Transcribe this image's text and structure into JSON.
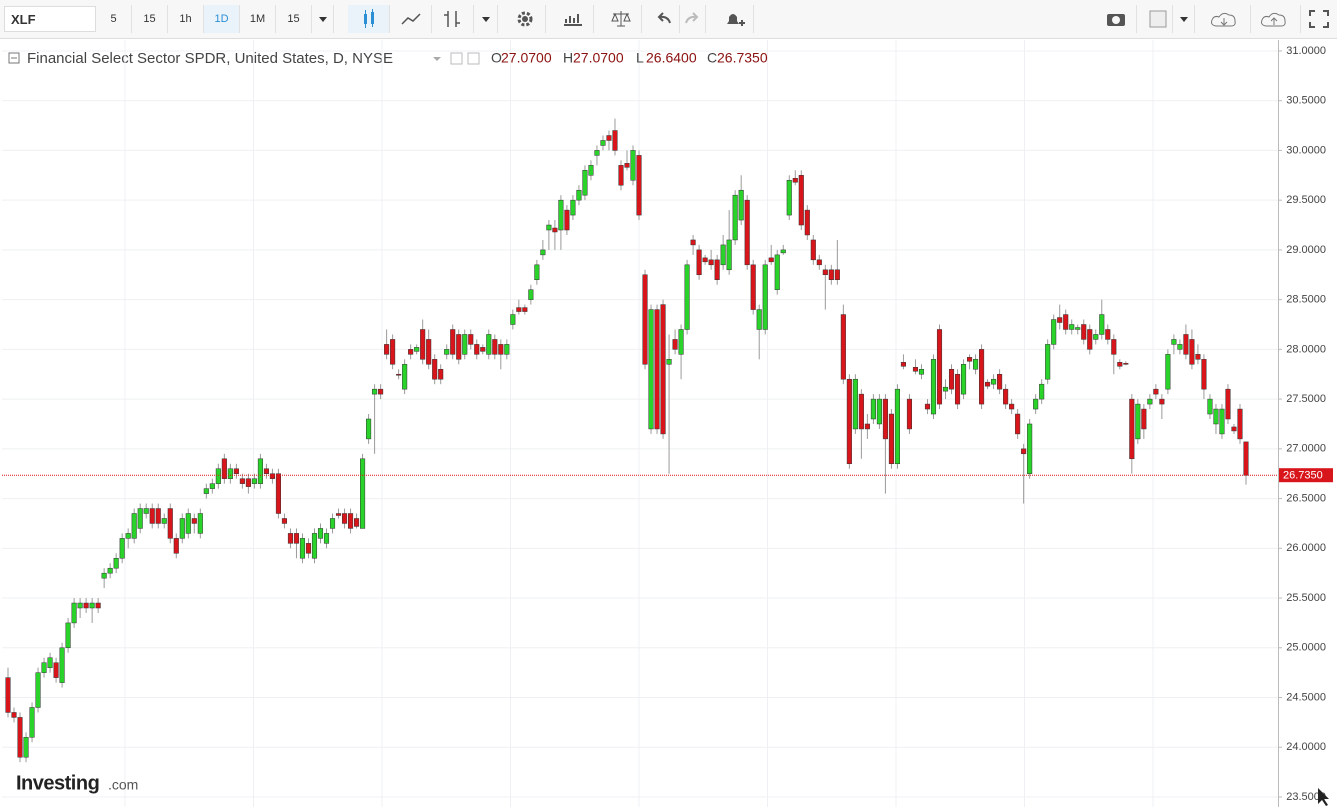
{
  "toolbar": {
    "symbol": "XLF",
    "intervals": [
      "5",
      "15",
      "1h",
      "1D",
      "1M",
      "15"
    ],
    "active": 3
  },
  "watermark": [
    "Investing",
    ".com"
  ],
  "chart_data": {
    "type": "candlestick",
    "title": "Financial Select Sector SPDR, United States, D, NYSE",
    "ohlc_keys": [
      "O",
      "H",
      "L",
      "C"
    ],
    "ohlc_labels": [
      "27.0700",
      "27.0700",
      "26.6400",
      "26.7350"
    ],
    "up_color": "#29d329",
    "down_color": "#d8151b",
    "price_line_color": "#d8151b",
    "grid": true,
    "ylim": [
      23.5,
      31.1
    ],
    "yticks": [
      {
        "value": 31.0,
        "label": "31.0000"
      },
      {
        "value": 30.5,
        "label": "30.5000"
      },
      {
        "value": 30.0,
        "label": "30.0000"
      },
      {
        "value": 29.5,
        "label": "29.5000"
      },
      {
        "value": 29.0,
        "label": "29.0000"
      },
      {
        "value": 28.5,
        "label": "28.5000"
      },
      {
        "value": 28.0,
        "label": "28.0000"
      },
      {
        "value": 27.5,
        "label": "27.5000"
      },
      {
        "value": 27.0,
        "label": "27.0000"
      },
      {
        "value": 26.5,
        "label": "26.5000"
      },
      {
        "value": 26.0,
        "label": "26.0000"
      },
      {
        "value": 25.5,
        "label": "25.5000"
      },
      {
        "value": 25.0,
        "label": "25.0000"
      },
      {
        "value": 24.5,
        "label": "24.5000"
      },
      {
        "value": 24.0,
        "label": "24.0000"
      },
      {
        "value": 23.5,
        "label": "23.5000"
      }
    ],
    "candles": [
      [
        24.7,
        24.8,
        24.3,
        24.35
      ],
      [
        24.35,
        24.4,
        24.25,
        24.3
      ],
      [
        24.3,
        24.35,
        23.85,
        23.9
      ],
      [
        23.9,
        24.15,
        23.85,
        24.1
      ],
      [
        24.1,
        24.45,
        24.05,
        24.4
      ],
      [
        24.4,
        24.8,
        24.35,
        24.75
      ],
      [
        24.75,
        24.9,
        24.7,
        24.85
      ],
      [
        24.8,
        24.95,
        24.75,
        24.9
      ],
      [
        24.85,
        24.9,
        24.65,
        24.7
      ],
      [
        24.65,
        25.05,
        24.6,
        25.0
      ],
      [
        25.0,
        25.3,
        24.95,
        25.25
      ],
      [
        25.25,
        25.5,
        25.2,
        25.45
      ],
      [
        25.4,
        25.5,
        25.3,
        25.45
      ],
      [
        25.45,
        25.5,
        25.35,
        25.4
      ],
      [
        25.4,
        25.5,
        25.25,
        25.45
      ],
      [
        25.45,
        25.5,
        25.35,
        25.4
      ],
      [
        25.7,
        25.8,
        25.6,
        25.75
      ],
      [
        25.75,
        25.85,
        25.7,
        25.8
      ],
      [
        25.8,
        25.95,
        25.75,
        25.9
      ],
      [
        25.9,
        26.15,
        25.85,
        26.1
      ],
      [
        26.1,
        26.2,
        26.0,
        26.15
      ],
      [
        26.1,
        26.4,
        26.05,
        26.35
      ],
      [
        26.2,
        26.45,
        26.15,
        26.4
      ],
      [
        26.35,
        26.45,
        26.3,
        26.4
      ],
      [
        26.4,
        26.45,
        26.2,
        26.25
      ],
      [
        26.4,
        26.45,
        26.2,
        26.25
      ],
      [
        26.25,
        26.35,
        26.2,
        26.3
      ],
      [
        26.4,
        26.45,
        26.05,
        26.1
      ],
      [
        26.1,
        26.15,
        25.9,
        25.95
      ],
      [
        26.1,
        26.35,
        26.05,
        26.3
      ],
      [
        26.15,
        26.4,
        26.1,
        26.35
      ],
      [
        26.3,
        26.35,
        26.15,
        26.25
      ],
      [
        26.15,
        26.4,
        26.1,
        26.35
      ],
      [
        26.55,
        26.65,
        26.5,
        26.6
      ],
      [
        26.6,
        26.7,
        26.55,
        26.65
      ],
      [
        26.65,
        26.85,
        26.6,
        26.8
      ],
      [
        26.9,
        26.95,
        26.65,
        26.7
      ],
      [
        26.7,
        26.85,
        26.65,
        26.8
      ],
      [
        26.8,
        26.85,
        26.7,
        26.75
      ],
      [
        26.7,
        26.75,
        26.6,
        26.65
      ],
      [
        26.7,
        26.75,
        26.55,
        26.62
      ],
      [
        26.65,
        26.75,
        26.6,
        26.7
      ],
      [
        26.65,
        26.95,
        26.6,
        26.9
      ],
      [
        26.8,
        26.85,
        26.7,
        26.75
      ],
      [
        26.75,
        26.8,
        26.65,
        26.7
      ],
      [
        26.75,
        26.8,
        26.3,
        26.35
      ],
      [
        26.3,
        26.35,
        26.2,
        26.25
      ],
      [
        26.15,
        26.2,
        26.0,
        26.05
      ],
      [
        26.15,
        26.2,
        25.9,
        26.05
      ],
      [
        25.9,
        26.15,
        25.85,
        26.1
      ],
      [
        26.05,
        26.1,
        25.9,
        25.95
      ],
      [
        25.9,
        26.2,
        25.85,
        26.15
      ],
      [
        26.1,
        26.25,
        26.05,
        26.2
      ],
      [
        26.05,
        26.2,
        26.0,
        26.15
      ],
      [
        26.2,
        26.35,
        26.15,
        26.3
      ],
      [
        26.35,
        26.4,
        26.3,
        26.33
      ],
      [
        26.35,
        26.4,
        26.2,
        26.25
      ],
      [
        26.35,
        26.4,
        26.15,
        26.2
      ],
      [
        26.3,
        26.35,
        26.2,
        26.22
      ],
      [
        26.2,
        26.95,
        26.2,
        26.9
      ],
      [
        27.1,
        27.35,
        27.05,
        27.3
      ],
      [
        27.55,
        27.65,
        26.95,
        27.6
      ],
      [
        27.6,
        27.65,
        27.5,
        27.55
      ],
      [
        28.05,
        28.2,
        27.9,
        27.95
      ],
      [
        28.1,
        28.15,
        27.8,
        27.85
      ],
      [
        27.75,
        27.8,
        27.7,
        27.74
      ],
      [
        27.6,
        27.9,
        27.55,
        27.85
      ],
      [
        28.0,
        28.05,
        27.9,
        27.95
      ],
      [
        27.98,
        28.05,
        27.95,
        28.02
      ],
      [
        28.2,
        28.3,
        27.85,
        27.9
      ],
      [
        28.1,
        28.2,
        27.8,
        27.85
      ],
      [
        27.9,
        27.95,
        27.65,
        27.7
      ],
      [
        27.8,
        27.85,
        27.65,
        27.7
      ],
      [
        27.95,
        28.05,
        27.9,
        28.0
      ],
      [
        28.2,
        28.25,
        27.9,
        27.95
      ],
      [
        28.15,
        28.2,
        27.85,
        27.9
      ],
      [
        27.95,
        28.2,
        27.9,
        28.15
      ],
      [
        28.15,
        28.2,
        28.0,
        28.05
      ],
      [
        28.05,
        28.1,
        27.9,
        27.95
      ],
      [
        28.02,
        28.05,
        27.95,
        27.98
      ],
      [
        27.95,
        28.2,
        27.9,
        28.15
      ],
      [
        28.1,
        28.15,
        27.9,
        27.95
      ],
      [
        28.05,
        28.1,
        27.8,
        27.95
      ],
      [
        27.95,
        28.1,
        27.9,
        28.05
      ],
      [
        28.25,
        28.4,
        28.2,
        28.35
      ],
      [
        28.42,
        28.5,
        28.35,
        28.38
      ],
      [
        28.42,
        28.45,
        28.35,
        28.38
      ],
      [
        28.5,
        28.65,
        28.45,
        28.6
      ],
      [
        28.7,
        28.9,
        28.65,
        28.85
      ],
      [
        28.95,
        29.1,
        28.9,
        29.0
      ],
      [
        29.2,
        29.3,
        29.0,
        29.25
      ],
      [
        29.22,
        29.3,
        29.0,
        29.18
      ],
      [
        29.2,
        29.55,
        29.0,
        29.5
      ],
      [
        29.4,
        29.45,
        29.15,
        29.2
      ],
      [
        29.35,
        29.55,
        29.3,
        29.5
      ],
      [
        29.5,
        29.65,
        29.45,
        29.6
      ],
      [
        29.55,
        29.85,
        29.5,
        29.8
      ],
      [
        29.75,
        29.9,
        29.7,
        29.85
      ],
      [
        29.95,
        30.05,
        29.85,
        30.0
      ],
      [
        30.05,
        30.15,
        30.0,
        30.1
      ],
      [
        30.15,
        30.2,
        30.0,
        30.1
      ],
      [
        30.2,
        30.32,
        29.95,
        30.0
      ],
      [
        29.85,
        29.9,
        29.6,
        29.65
      ],
      [
        29.87,
        30.0,
        29.8,
        29.83
      ],
      [
        29.7,
        30.05,
        29.65,
        30.0
      ],
      [
        29.95,
        30.0,
        29.3,
        29.35
      ],
      [
        28.75,
        28.8,
        27.8,
        27.85
      ],
      [
        27.2,
        28.45,
        27.15,
        28.4
      ],
      [
        28.4,
        28.45,
        27.15,
        27.2
      ],
      [
        28.45,
        28.5,
        27.1,
        27.15
      ],
      [
        27.85,
        28.15,
        26.75,
        27.9
      ],
      [
        28.1,
        28.2,
        27.95,
        28.0
      ],
      [
        27.95,
        28.25,
        27.7,
        28.2
      ],
      [
        28.2,
        28.9,
        28.15,
        28.85
      ],
      [
        29.1,
        29.15,
        28.95,
        29.05
      ],
      [
        29.0,
        29.05,
        28.7,
        28.75
      ],
      [
        28.92,
        28.95,
        28.85,
        28.88
      ],
      [
        28.9,
        29.0,
        28.8,
        28.85
      ],
      [
        28.9,
        28.95,
        28.65,
        28.7
      ],
      [
        28.85,
        29.15,
        28.8,
        29.05
      ],
      [
        28.8,
        29.4,
        28.75,
        29.1
      ],
      [
        29.1,
        29.6,
        29.05,
        29.55
      ],
      [
        29.3,
        29.75,
        29.25,
        29.6
      ],
      [
        29.5,
        29.55,
        28.8,
        28.85
      ],
      [
        28.85,
        28.9,
        28.35,
        28.4
      ],
      [
        28.2,
        28.45,
        27.9,
        28.4
      ],
      [
        28.2,
        28.9,
        28.15,
        28.85
      ],
      [
        28.92,
        29.05,
        28.85,
        28.88
      ],
      [
        28.6,
        29.0,
        28.55,
        28.95
      ],
      [
        28.97,
        29.05,
        28.95,
        29.0
      ],
      [
        29.35,
        29.75,
        29.3,
        29.7
      ],
      [
        29.72,
        29.8,
        29.65,
        29.68
      ],
      [
        29.75,
        29.8,
        29.2,
        29.25
      ],
      [
        29.4,
        29.45,
        29.1,
        29.15
      ],
      [
        29.1,
        29.15,
        28.85,
        28.9
      ],
      [
        28.9,
        28.95,
        28.8,
        28.85
      ],
      [
        28.8,
        28.85,
        28.4,
        28.75
      ],
      [
        28.8,
        28.85,
        28.65,
        28.7
      ],
      [
        28.8,
        29.1,
        28.65,
        28.7
      ],
      [
        28.35,
        28.45,
        27.65,
        27.7
      ],
      [
        27.7,
        27.75,
        26.8,
        26.85
      ],
      [
        27.2,
        27.75,
        27.15,
        27.7
      ],
      [
        27.55,
        27.6,
        26.9,
        27.2
      ],
      [
        27.25,
        27.35,
        27.1,
        27.2
      ],
      [
        27.3,
        27.55,
        27.25,
        27.5
      ],
      [
        27.25,
        27.55,
        27.2,
        27.5
      ],
      [
        27.5,
        27.55,
        26.55,
        27.1
      ],
      [
        27.35,
        27.4,
        26.8,
        26.85
      ],
      [
        26.85,
        27.65,
        26.8,
        27.6
      ],
      [
        27.87,
        27.95,
        27.8,
        27.83
      ],
      [
        27.5,
        27.55,
        27.15,
        27.2
      ],
      [
        27.82,
        27.9,
        27.75,
        27.78
      ],
      [
        27.75,
        27.85,
        27.7,
        27.8
      ],
      [
        27.45,
        27.5,
        27.35,
        27.4
      ],
      [
        27.35,
        27.95,
        27.3,
        27.9
      ],
      [
        28.2,
        28.25,
        27.4,
        27.45
      ],
      [
        27.58,
        27.7,
        27.5,
        27.62
      ],
      [
        27.8,
        27.85,
        27.55,
        27.6
      ],
      [
        27.75,
        27.8,
        27.4,
        27.45
      ],
      [
        27.55,
        27.9,
        27.5,
        27.85
      ],
      [
        27.92,
        27.95,
        27.8,
        27.88
      ],
      [
        27.8,
        27.95,
        27.75,
        27.9
      ],
      [
        28.0,
        28.05,
        27.4,
        27.45
      ],
      [
        27.67,
        27.7,
        27.6,
        27.63
      ],
      [
        27.65,
        27.75,
        27.6,
        27.7
      ],
      [
        27.75,
        27.8,
        27.55,
        27.6
      ],
      [
        27.6,
        27.65,
        27.4,
        27.45
      ],
      [
        27.45,
        27.5,
        27.35,
        27.4
      ],
      [
        27.35,
        27.4,
        27.1,
        27.15
      ],
      [
        27.0,
        27.05,
        26.45,
        26.95
      ],
      [
        26.75,
        27.3,
        26.7,
        27.25
      ],
      [
        27.4,
        27.55,
        27.35,
        27.5
      ],
      [
        27.5,
        27.7,
        27.45,
        27.65
      ],
      [
        27.7,
        28.1,
        27.65,
        28.05
      ],
      [
        28.05,
        28.35,
        28.0,
        28.3
      ],
      [
        28.32,
        28.45,
        28.2,
        28.27
      ],
      [
        28.35,
        28.4,
        28.15,
        28.2
      ],
      [
        28.2,
        28.3,
        28.15,
        28.25
      ],
      [
        28.2,
        28.25,
        28.15,
        28.22
      ],
      [
        28.25,
        28.3,
        28.05,
        28.1
      ],
      [
        28.2,
        28.25,
        27.95,
        28.0
      ],
      [
        28.1,
        28.2,
        28.05,
        28.15
      ],
      [
        28.15,
        28.5,
        28.1,
        28.35
      ],
      [
        28.2,
        28.25,
        28.05,
        28.1
      ],
      [
        28.1,
        28.15,
        27.75,
        27.95
      ],
      [
        27.87,
        27.9,
        27.8,
        27.83
      ],
      [
        27.86,
        27.88,
        27.84,
        27.85
      ],
      [
        27.5,
        27.55,
        26.75,
        26.9
      ],
      [
        27.1,
        27.5,
        27.05,
        27.45
      ],
      [
        27.4,
        27.45,
        27.1,
        27.2
      ],
      [
        27.45,
        27.55,
        27.4,
        27.5
      ],
      [
        27.6,
        27.65,
        27.5,
        27.55
      ],
      [
        27.5,
        27.55,
        27.3,
        27.45
      ],
      [
        27.6,
        28.0,
        27.55,
        27.95
      ],
      [
        28.05,
        28.15,
        27.95,
        28.1
      ],
      [
        28.0,
        28.1,
        27.95,
        28.05
      ],
      [
        28.15,
        28.25,
        27.9,
        27.95
      ],
      [
        28.1,
        28.2,
        27.8,
        27.85
      ],
      [
        27.95,
        28.05,
        27.85,
        27.9
      ],
      [
        27.9,
        27.95,
        27.5,
        27.6
      ],
      [
        27.35,
        27.55,
        27.3,
        27.5
      ],
      [
        27.25,
        27.45,
        27.15,
        27.4
      ],
      [
        27.15,
        27.45,
        27.1,
        27.4
      ],
      [
        27.6,
        27.65,
        27.25,
        27.3
      ],
      [
        27.22,
        27.25,
        27.15,
        27.18
      ],
      [
        27.4,
        27.45,
        27.05,
        27.1
      ],
      [
        27.07,
        27.07,
        26.64,
        26.735
      ]
    ]
  }
}
